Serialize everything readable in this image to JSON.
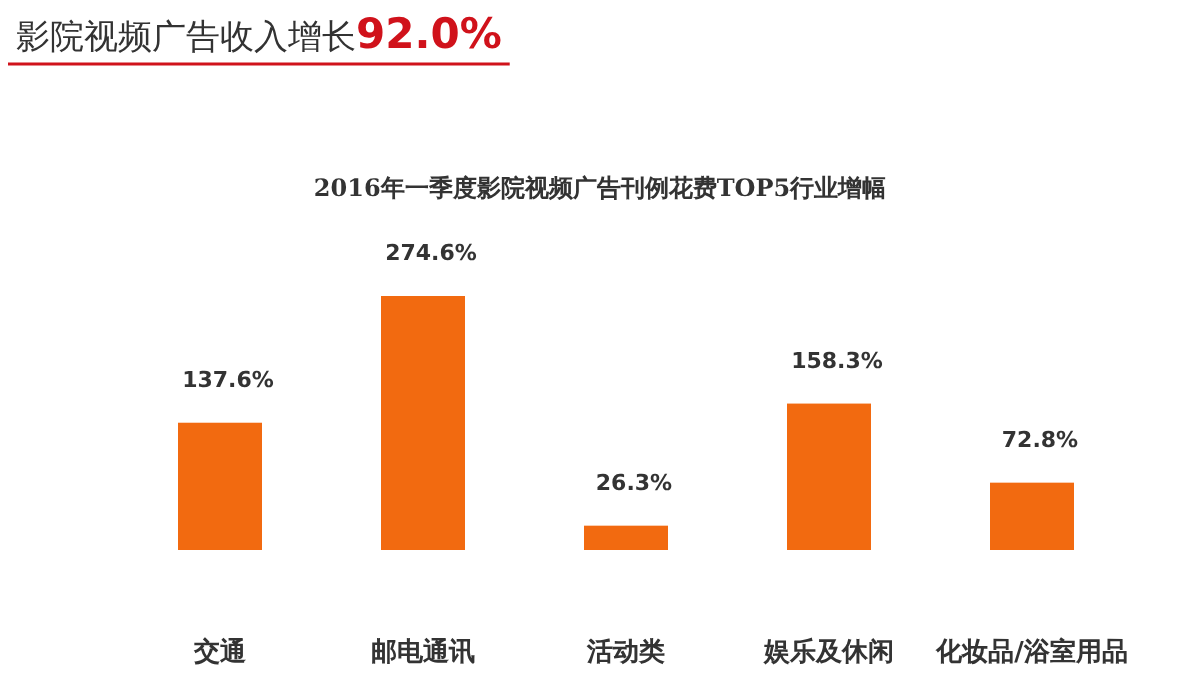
{
  "chart_data": {
    "type": "bar",
    "title": "影院视频广告收入增长**92.0%**",
    "subtitle": "2016年一季度影院视频广告刊例花费TOP5行业增幅",
    "categories": [
      "交通",
      "邮电通讯",
      "活动类",
      "娱乐及休闲",
      "化妆品/浴室用品"
    ],
    "values": [
      137.6,
      274.6,
      26.3,
      158.3,
      72.8
    ],
    "value_labels": [
      "137.6%",
      "274.6%",
      "26.3%",
      "158.3%",
      "72.8%"
    ],
    "color": "#f26a10"
  }
}
